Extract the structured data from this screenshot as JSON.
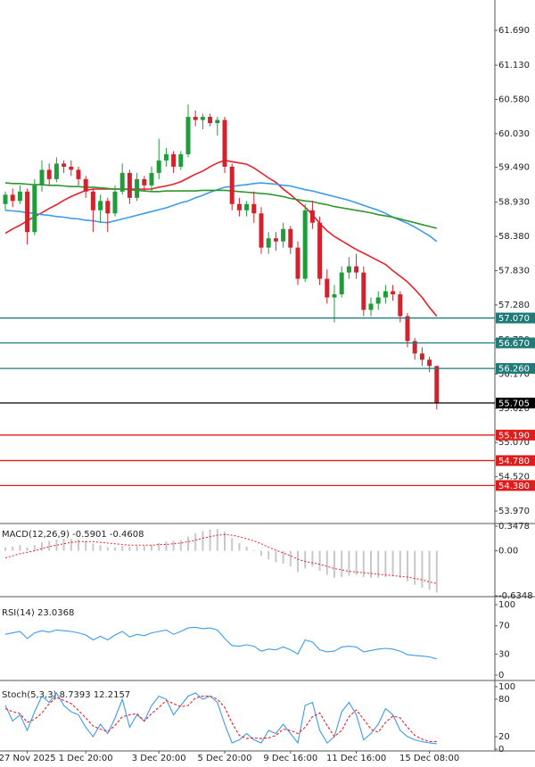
{
  "chart_data": [
    {
      "type": "candlestick",
      "categories": [
        null,
        null,
        null,
        "27 Nov 2025",
        null,
        null,
        null,
        null,
        null,
        null,
        null,
        "1 Dec 20:00",
        null,
        null,
        null,
        null,
        null,
        null,
        null,
        null,
        null,
        "3 Dec 20:00",
        null,
        null,
        null,
        null,
        null,
        null,
        null,
        null,
        "5 Dec 20:00",
        null,
        null,
        null,
        null,
        null,
        null,
        null,
        null,
        "9 Dec 16:00",
        null,
        null,
        null,
        null,
        null,
        null,
        null,
        null,
        "11 Dec 16:00",
        null,
        null,
        null,
        null,
        null,
        null,
        null,
        null,
        null,
        "15 Dec 08:00",
        null
      ],
      "open": [
        58.9,
        59.05,
        58.95,
        59.1,
        58.45,
        59.2,
        59.45,
        59.3,
        59.55,
        59.5,
        59.45,
        59.3,
        59.1,
        58.8,
        58.95,
        58.75,
        59.1,
        59.4,
        59.0,
        59.3,
        59.2,
        59.4,
        59.6,
        59.7,
        59.5,
        59.7,
        60.3,
        60.25,
        60.3,
        60.2,
        60.25,
        59.5,
        58.9,
        58.8,
        58.9,
        58.75,
        58.2,
        58.35,
        58.3,
        58.5,
        58.2,
        57.7,
        58.8,
        58.6,
        57.7,
        57.4,
        57.45,
        57.8,
        57.9,
        57.8,
        57.2,
        57.3,
        57.4,
        57.5,
        57.45,
        57.1,
        56.7,
        56.5,
        56.4,
        56.3
      ],
      "high": [
        59.1,
        59.15,
        59.2,
        59.15,
        59.3,
        59.6,
        59.55,
        59.65,
        59.6,
        59.6,
        59.5,
        59.35,
        59.15,
        59.05,
        59.0,
        59.2,
        59.55,
        59.45,
        59.4,
        59.35,
        59.5,
        59.95,
        59.8,
        59.75,
        59.75,
        60.5,
        60.4,
        60.35,
        60.35,
        60.3,
        60.3,
        59.55,
        59.0,
        58.95,
        59.1,
        58.85,
        58.45,
        58.45,
        58.6,
        58.55,
        58.3,
        58.9,
        58.95,
        58.7,
        57.85,
        57.6,
        57.9,
        58.05,
        58.1,
        57.9,
        57.4,
        57.5,
        57.6,
        57.6,
        57.5,
        57.15,
        56.75,
        56.6,
        56.45,
        56.3
      ],
      "low": [
        58.8,
        58.85,
        58.9,
        58.25,
        58.4,
        59.1,
        59.2,
        59.25,
        59.4,
        59.35,
        59.2,
        59.0,
        58.45,
        58.6,
        58.45,
        58.7,
        59.05,
        58.9,
        58.95,
        59.1,
        59.1,
        59.3,
        59.5,
        59.4,
        59.45,
        59.65,
        60.15,
        60.1,
        60.15,
        60.0,
        59.4,
        58.8,
        58.7,
        58.7,
        58.6,
        58.1,
        58.1,
        58.15,
        58.2,
        58.1,
        57.6,
        57.65,
        58.5,
        57.6,
        57.3,
        57.0,
        57.4,
        57.7,
        57.7,
        57.1,
        57.1,
        57.2,
        57.3,
        57.35,
        57.0,
        56.6,
        56.4,
        56.3,
        56.2,
        55.6
      ],
      "close": [
        59.05,
        58.95,
        59.1,
        58.45,
        59.2,
        59.45,
        59.3,
        59.55,
        59.5,
        59.45,
        59.3,
        59.1,
        58.8,
        58.95,
        58.75,
        59.1,
        59.4,
        59.0,
        59.3,
        59.2,
        59.4,
        59.6,
        59.7,
        59.5,
        59.7,
        60.3,
        60.25,
        60.3,
        60.2,
        60.25,
        59.5,
        58.9,
        58.8,
        58.9,
        58.75,
        58.2,
        58.35,
        58.3,
        58.5,
        58.2,
        57.7,
        58.8,
        58.6,
        57.7,
        57.4,
        57.45,
        57.8,
        57.9,
        57.8,
        57.2,
        57.3,
        57.4,
        57.5,
        57.45,
        57.1,
        56.7,
        56.5,
        56.4,
        56.3,
        55.705
      ],
      "up_color": "#1f9d3a",
      "down_color": "#d2222d",
      "series": [
        {
          "color": "#e8202a",
          "values": [
            58.43,
            58.5,
            58.56,
            58.63,
            58.7,
            58.76,
            58.83,
            58.89,
            58.96,
            59.02,
            59.07,
            59.12,
            59.14,
            59.14,
            59.14,
            59.14,
            59.14,
            59.14,
            59.14,
            59.14,
            59.14,
            59.17,
            59.19,
            59.22,
            59.26,
            59.32,
            59.38,
            59.43,
            59.5,
            59.56,
            59.6,
            59.58,
            59.56,
            59.54,
            59.48,
            59.4,
            59.32,
            59.25,
            59.14,
            59.05,
            58.95,
            58.85,
            58.73,
            58.59,
            58.47,
            58.38,
            58.31,
            58.24,
            58.17,
            58.11,
            58.05,
            57.99,
            57.93,
            57.83,
            57.74,
            57.65,
            57.53,
            57.4,
            57.24,
            57.1
          ]
        },
        {
          "color": "#3d9be9",
          "values": [
            58.8,
            58.79,
            58.78,
            58.76,
            58.75,
            58.73,
            58.72,
            58.7,
            58.69,
            58.67,
            58.66,
            58.64,
            58.63,
            58.61,
            58.6,
            58.63,
            58.66,
            58.69,
            58.72,
            58.75,
            58.78,
            58.81,
            58.84,
            58.88,
            58.92,
            58.95,
            59.0,
            59.04,
            59.09,
            59.13,
            59.17,
            59.18,
            59.2,
            59.21,
            59.23,
            59.24,
            59.23,
            59.22,
            59.2,
            59.19,
            59.16,
            59.13,
            59.11,
            59.08,
            59.05,
            59.02,
            58.99,
            58.96,
            58.92,
            58.88,
            58.84,
            58.8,
            58.75,
            58.69,
            58.64,
            58.59,
            58.53,
            58.46,
            58.39,
            58.3
          ]
        },
        {
          "color": "#2e962e",
          "values": [
            59.24,
            59.23,
            59.23,
            59.22,
            59.21,
            59.21,
            59.2,
            59.2,
            59.19,
            59.18,
            59.18,
            59.17,
            59.17,
            59.16,
            59.15,
            59.14,
            59.14,
            59.13,
            59.12,
            59.11,
            59.1,
            59.1,
            59.11,
            59.11,
            59.11,
            59.11,
            59.11,
            59.12,
            59.12,
            59.12,
            59.12,
            59.11,
            59.1,
            59.09,
            59.08,
            59.07,
            59.06,
            59.04,
            59.02,
            58.99,
            58.97,
            58.95,
            58.94,
            58.91,
            58.89,
            58.86,
            58.84,
            58.82,
            58.8,
            58.78,
            58.76,
            58.73,
            58.71,
            58.69,
            58.66,
            58.63,
            58.6,
            58.57,
            58.54,
            58.51
          ]
        }
      ],
      "levels": [
        {
          "value": 57.07,
          "label": "57.070",
          "color": "#1e7b78"
        },
        {
          "value": 56.67,
          "label": "56.670",
          "color": "#1e7b78"
        },
        {
          "value": 56.26,
          "label": "56.260",
          "color": "#1e7b78"
        },
        {
          "value": 55.705,
          "label": "55.705",
          "color": "#000000"
        },
        {
          "value": 55.19,
          "label": "55.190",
          "color": "#e01b1b"
        },
        {
          "value": 54.78,
          "label": "54.780",
          "color": "#e01b1b"
        },
        {
          "value": 54.38,
          "label": "54.380",
          "color": "#e01b1b"
        }
      ],
      "ylim": [
        53.798,
        62.177
      ],
      "yticks": [
        {
          "value": 61.69,
          "label": "61.690"
        },
        {
          "value": 61.13,
          "label": "61.130"
        },
        {
          "value": 60.58,
          "label": "60.580"
        },
        {
          "value": 60.03,
          "label": "60.030"
        },
        {
          "value": 59.49,
          "label": "59.490"
        },
        {
          "value": 58.93,
          "label": "58.930"
        },
        {
          "value": 58.38,
          "label": "58.380"
        },
        {
          "value": 57.83,
          "label": "57.830"
        },
        {
          "value": 57.28,
          "label": "57.280"
        },
        {
          "value": 56.72,
          "label": "56.720"
        },
        {
          "value": 56.17,
          "label": "56.170"
        },
        {
          "value": 55.62,
          "label": "55.620"
        },
        {
          "value": 55.07,
          "label": "55.070"
        },
        {
          "value": 54.52,
          "label": "54.520"
        },
        {
          "value": 53.97,
          "label": "53.970"
        }
      ]
    },
    {
      "type": "macd",
      "title": "MACD(12,26,9) -0.5901 -0.4608",
      "series": [
        {
          "color": "#c8c8c8",
          "values": [
            0.05,
            0.06,
            0.08,
            0.05,
            0.08,
            0.12,
            0.14,
            0.16,
            0.17,
            0.17,
            0.16,
            0.14,
            0.1,
            0.08,
            0.05,
            0.05,
            0.07,
            0.06,
            0.07,
            0.07,
            0.08,
            0.11,
            0.13,
            0.14,
            0.15,
            0.2,
            0.25,
            0.28,
            0.3,
            0.31,
            0.27,
            0.18,
            0.11,
            0.06,
            0.01,
            -0.07,
            -0.12,
            -0.16,
            -0.18,
            -0.22,
            -0.3,
            -0.25,
            -0.22,
            -0.28,
            -0.34,
            -0.38,
            -0.37,
            -0.35,
            -0.34,
            -0.37,
            -0.38,
            -0.38,
            -0.37,
            -0.36,
            -0.38,
            -0.43,
            -0.48,
            -0.52,
            -0.55,
            -0.5901
          ]
        },
        {
          "color": "#e8202a",
          "values": [
            -0.1,
            -0.07,
            -0.04,
            -0.02,
            0.0,
            0.03,
            0.06,
            0.08,
            0.1,
            0.12,
            0.13,
            0.13,
            0.13,
            0.12,
            0.11,
            0.1,
            0.09,
            0.08,
            0.08,
            0.08,
            0.08,
            0.09,
            0.09,
            0.1,
            0.11,
            0.13,
            0.15,
            0.18,
            0.2,
            0.22,
            0.23,
            0.22,
            0.2,
            0.17,
            0.14,
            0.1,
            0.05,
            0.01,
            -0.03,
            -0.07,
            -0.12,
            -0.15,
            -0.17,
            -0.19,
            -0.22,
            -0.25,
            -0.27,
            -0.29,
            -0.3,
            -0.31,
            -0.32,
            -0.33,
            -0.34,
            -0.35,
            -0.36,
            -0.37,
            -0.39,
            -0.41,
            -0.44,
            -0.4608
          ]
        }
      ],
      "ylim": [
        -0.6348,
        0.3478
      ],
      "yticks": [
        0.3478,
        {
          "value": 0,
          "label": "0.00"
        },
        -0.6348
      ]
    },
    {
      "type": "line",
      "title": "RSI(14) 23.0368",
      "series": [
        {
          "color": "#3d9be9",
          "values": [
            58,
            60,
            62,
            52,
            60,
            63,
            61,
            64,
            63,
            62,
            60,
            57,
            50,
            55,
            50,
            57,
            62,
            54,
            58,
            56,
            60,
            62,
            64,
            58,
            62,
            67,
            68,
            66,
            67,
            64,
            52,
            42,
            41,
            43,
            41,
            34,
            37,
            36,
            40,
            36,
            30,
            50,
            47,
            36,
            33,
            34,
            40,
            41,
            40,
            33,
            35,
            37,
            38,
            37,
            34,
            29,
            28,
            27,
            26,
            23.0368
          ]
        }
      ],
      "ylim": [
        0,
        100
      ],
      "yticks": [
        100,
        70,
        30,
        0
      ]
    },
    {
      "type": "line",
      "title": "Stoch(5,3,3) 8.7393 12.2157",
      "series": [
        {
          "color": "#3d9be9",
          "values": [
            70,
            45,
            55,
            30,
            60,
            85,
            75,
            90,
            70,
            60,
            55,
            35,
            20,
            40,
            25,
            50,
            80,
            35,
            55,
            45,
            70,
            85,
            80,
            55,
            70,
            85,
            90,
            80,
            85,
            75,
            40,
            10,
            15,
            25,
            15,
            10,
            30,
            25,
            40,
            25,
            10,
            70,
            75,
            30,
            10,
            20,
            60,
            75,
            55,
            15,
            25,
            40,
            65,
            55,
            30,
            20,
            15,
            12,
            10,
            8.7393
          ]
        },
        {
          "color": "#e8202a",
          "dashed": true,
          "values": [
            65,
            60,
            57,
            43,
            48,
            58,
            73,
            83,
            78,
            73,
            62,
            50,
            37,
            32,
            28,
            38,
            52,
            55,
            57,
            45,
            57,
            67,
            78,
            73,
            68,
            70,
            82,
            85,
            85,
            80,
            67,
            42,
            22,
            17,
            18,
            17,
            18,
            22,
            32,
            30,
            25,
            35,
            52,
            58,
            38,
            20,
            30,
            52,
            63,
            48,
            32,
            27,
            43,
            53,
            50,
            35,
            22,
            16,
            12,
            12.2157
          ]
        }
      ],
      "ylim": [
        0,
        100
      ],
      "yticks": [
        100,
        80,
        20,
        0
      ]
    }
  ]
}
